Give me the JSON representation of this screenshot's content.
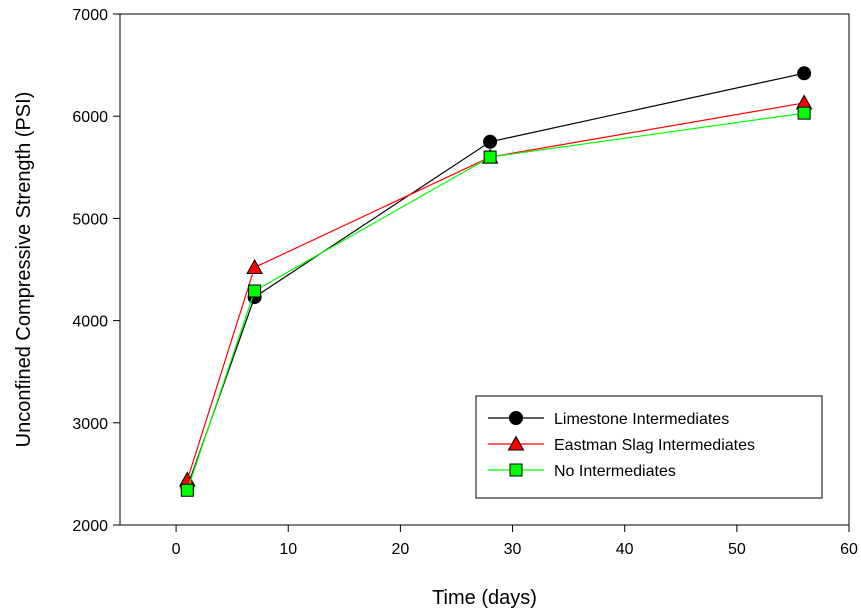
{
  "chart_data": {
    "type": "line",
    "title": "",
    "xlabel": "Time (days)",
    "ylabel": "Unconfined Compressive Strength (PSI)",
    "xlim": [
      -5,
      60
    ],
    "ylim": [
      2000,
      7000
    ],
    "x_ticks": [
      0,
      10,
      20,
      30,
      40,
      50,
      60
    ],
    "y_ticks": [
      2000,
      3000,
      4000,
      5000,
      6000,
      7000
    ],
    "grid": false,
    "legend_position": "bottom-right",
    "series": [
      {
        "name": "Limestone Intermediates",
        "marker": "circle",
        "line_color": "#000000",
        "marker_fill": "#000000",
        "x": [
          1,
          7,
          28,
          56
        ],
        "values": [
          2370,
          4230,
          5750,
          6420
        ]
      },
      {
        "name": "Eastman Slag Intermediates",
        "marker": "triangle",
        "line_color": "#ff0000",
        "marker_fill": "#ff0000",
        "x": [
          1,
          7,
          28,
          56
        ],
        "values": [
          2440,
          4520,
          5600,
          6130
        ]
      },
      {
        "name": "No Intermediates",
        "marker": "square",
        "line_color": "#00ff00",
        "marker_fill": "#00ff00",
        "x": [
          1,
          7,
          28,
          56
        ],
        "values": [
          2340,
          4290,
          5600,
          6030
        ]
      }
    ]
  }
}
